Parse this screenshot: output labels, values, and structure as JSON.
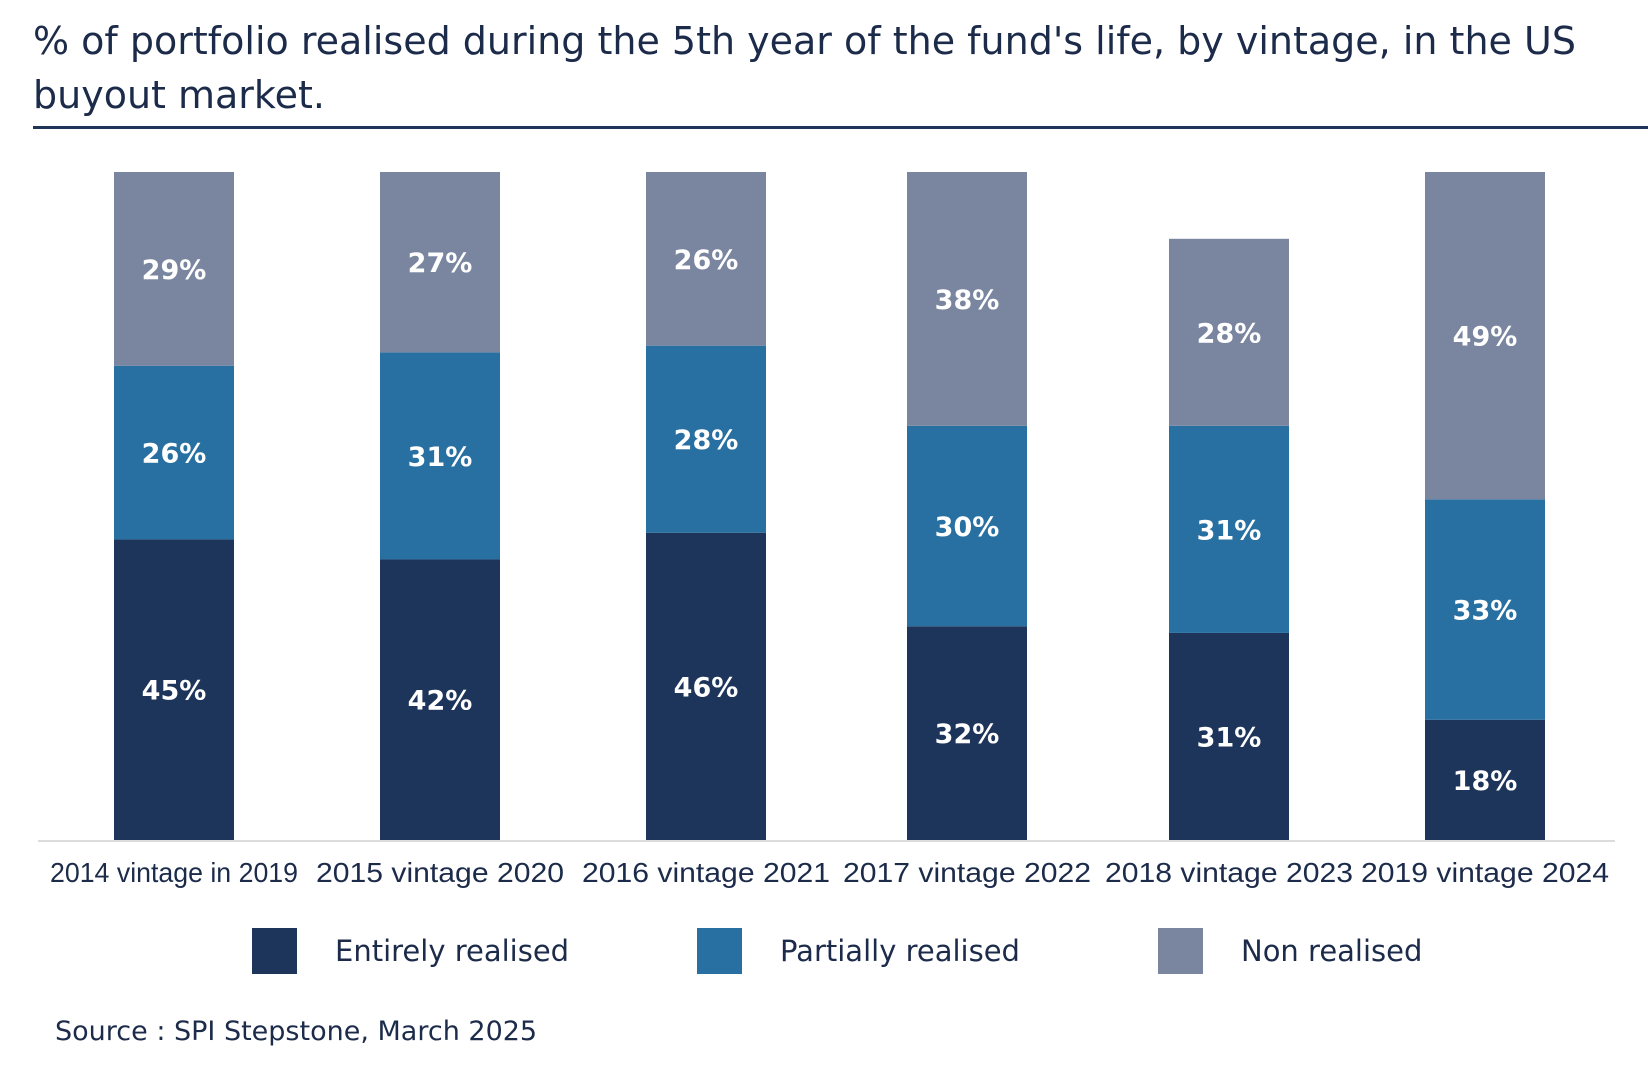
{
  "title": "% of portfolio realised during the 5th year of the fund's life, by vintage, in the US buyout market.",
  "source": "Source : SPI Stepstone, March 2025",
  "colors": {
    "entirely": "#1d345b",
    "partially": "#2870a1",
    "non": "#7a869f",
    "label": "#ffffff",
    "axis_text": "#1c2b4a",
    "baseline": "#dcdcdc"
  },
  "chart_data": {
    "type": "bar",
    "stacked": true,
    "categories": [
      "2014 vintage in 2019",
      "2015 vintage 2020",
      "2016 vintage 2021",
      "2017 vintage 2022",
      "2018 vintage 2023",
      "2019 vintage 2024"
    ],
    "series": [
      {
        "name": "Entirely realised",
        "values": [
          45,
          42,
          46,
          32,
          31,
          18
        ],
        "labels": [
          "45%",
          "42%",
          "46%",
          "32%",
          "31%",
          "18%"
        ]
      },
      {
        "name": "Partially realised",
        "values": [
          26,
          31,
          28,
          30,
          31,
          33
        ],
        "labels": [
          "26%",
          "31%",
          "28%",
          "30%",
          "31%",
          "33%"
        ]
      },
      {
        "name": "Non realised",
        "values": [
          29,
          27,
          26,
          38,
          28,
          49
        ],
        "labels": [
          "29%",
          "27%",
          "26%",
          "38%",
          "28%",
          "49%"
        ]
      }
    ],
    "ylim": [
      0,
      100
    ],
    "grid": false,
    "legend_position": "bottom"
  }
}
